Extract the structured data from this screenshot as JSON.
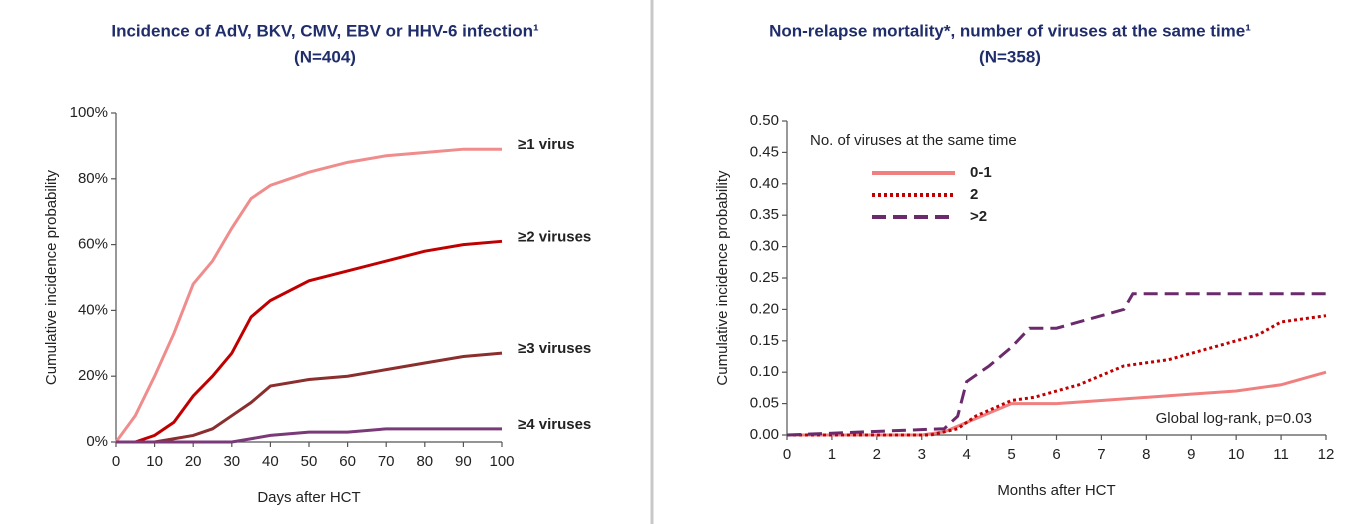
{
  "chart_data": [
    {
      "type": "line",
      "title": "Incidence of AdV, BKV, CMV, EBV or HHV-6 infection¹",
      "subtitle": "(N=404)",
      "x_label": "Days after HCT",
      "y_label": "Cumulative incidence probability",
      "x": [
        0,
        5,
        10,
        15,
        20,
        25,
        30,
        35,
        40,
        50,
        60,
        70,
        80,
        90,
        100
      ],
      "series": [
        {
          "name": "≥1 virus",
          "color": "#f08c8c",
          "dash": "solid",
          "values": [
            0,
            8,
            20,
            33,
            48,
            55,
            65,
            74,
            78,
            82,
            85,
            87,
            88,
            89,
            89
          ]
        },
        {
          "name": "≥2 viruses",
          "color": "#c00000",
          "dash": "solid",
          "values": [
            0,
            0,
            2,
            6,
            14,
            20,
            27,
            38,
            43,
            49,
            52,
            55,
            58,
            60,
            61
          ]
        },
        {
          "name": "≥3 viruses",
          "color": "#8b2e2e",
          "dash": "solid",
          "values": [
            0,
            0,
            0,
            1,
            2,
            4,
            8,
            12,
            17,
            19,
            20,
            22,
            24,
            26,
            27
          ]
        },
        {
          "name": "≥4 viruses",
          "color": "#7a3a7a",
          "dash": "solid",
          "values": [
            0,
            0,
            0,
            0,
            0,
            0,
            0,
            1,
            2,
            3,
            3,
            4,
            4,
            4,
            4
          ]
        }
      ],
      "xlim": [
        0,
        100
      ],
      "xticks": [
        0,
        10,
        20,
        30,
        40,
        50,
        60,
        70,
        80,
        90,
        100
      ],
      "ylim": [
        0,
        100
      ],
      "yticks": [
        {
          "value": 0,
          "label": "0%"
        },
        {
          "value": 20,
          "label": "20%"
        },
        {
          "value": 40,
          "label": "40%"
        },
        {
          "value": 60,
          "label": "60%"
        },
        {
          "value": 80,
          "label": "80%"
        },
        {
          "value": 100,
          "label": "100%"
        }
      ],
      "legend": "direct"
    },
    {
      "type": "line",
      "title": "Non-relapse mortality*, number of viruses at the same time¹",
      "subtitle": "(N=358)",
      "x_label": "Months after HCT",
      "y_label": "Cumulative incidence probability",
      "legend_title": "No. of viruses at the same time",
      "annotation": "Global log-rank, p=0.03",
      "series": [
        {
          "name": "0-1",
          "color": "#f08080",
          "dash": "solid",
          "x": [
            0,
            3,
            3.5,
            4,
            4.5,
            5,
            6,
            7,
            8,
            9,
            10,
            11,
            12
          ],
          "values": [
            0,
            0,
            0.005,
            0.02,
            0.035,
            0.05,
            0.05,
            0.055,
            0.06,
            0.065,
            0.07,
            0.08,
            0.1
          ]
        },
        {
          "name": "2",
          "color": "#c00000",
          "dash": "dotted",
          "x": [
            0,
            3.2,
            3.8,
            4.2,
            5,
            5.5,
            6.5,
            7.5,
            8.5,
            9.5,
            10.5,
            11,
            12
          ],
          "values": [
            0,
            0,
            0.01,
            0.03,
            0.055,
            0.06,
            0.08,
            0.11,
            0.12,
            0.14,
            0.16,
            0.18,
            0.19
          ]
        },
        {
          "name": ">2",
          "color": "#6b2a6b",
          "dash": "dashed",
          "x": [
            0,
            3.5,
            3.8,
            4,
            4.5,
            5,
            5.4,
            6,
            7.5,
            7.7,
            12
          ],
          "values": [
            0,
            0.01,
            0.03,
            0.085,
            0.11,
            0.14,
            0.17,
            0.17,
            0.2,
            0.225,
            0.225
          ]
        }
      ],
      "xlim": [
        0,
        12
      ],
      "xticks": [
        0,
        1,
        2,
        3,
        4,
        5,
        6,
        7,
        8,
        9,
        10,
        11,
        12
      ],
      "ylim": [
        0,
        0.5
      ],
      "yticks": [
        {
          "value": 0,
          "label": "0.00"
        },
        {
          "value": 0.05,
          "label": "0.05"
        },
        {
          "value": 0.1,
          "label": "0.10"
        },
        {
          "value": 0.15,
          "label": "0.15"
        },
        {
          "value": 0.2,
          "label": "0.20"
        },
        {
          "value": 0.25,
          "label": "0.25"
        },
        {
          "value": 0.3,
          "label": "0.30"
        },
        {
          "value": 0.35,
          "label": "0.35"
        },
        {
          "value": 0.4,
          "label": "0.40"
        },
        {
          "value": 0.45,
          "label": "0.45"
        },
        {
          "value": 0.5,
          "label": "0.50"
        }
      ],
      "legend": "upper left"
    }
  ]
}
